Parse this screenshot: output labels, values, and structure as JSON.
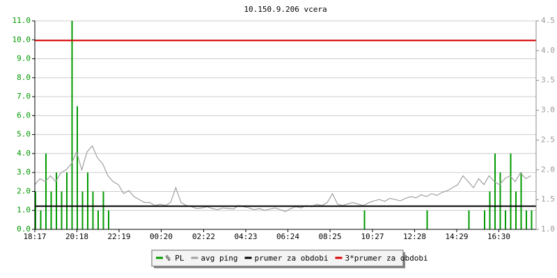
{
  "chart_data": {
    "type": "line",
    "title": "10.150.9.206 vcera",
    "x": [
      "18:17",
      "18:32",
      "18:47",
      "19:02",
      "19:17",
      "19:32",
      "19:47",
      "20:02",
      "20:17",
      "20:32",
      "20:47",
      "21:02",
      "21:17",
      "21:32",
      "21:47",
      "22:02",
      "22:17",
      "22:32",
      "22:47",
      "23:02",
      "23:17",
      "23:32",
      "23:47",
      "00:02",
      "00:17",
      "00:32",
      "00:47",
      "01:02",
      "01:17",
      "01:32",
      "01:47",
      "02:02",
      "02:17",
      "02:32",
      "02:47",
      "03:02",
      "03:17",
      "03:32",
      "03:47",
      "04:02",
      "04:17",
      "04:32",
      "04:47",
      "05:02",
      "05:17",
      "05:32",
      "05:47",
      "06:02",
      "06:17",
      "06:32",
      "06:47",
      "07:02",
      "07:17",
      "07:32",
      "07:47",
      "08:02",
      "08:17",
      "08:32",
      "08:47",
      "09:02",
      "09:17",
      "09:32",
      "09:47",
      "10:02",
      "10:17",
      "10:32",
      "10:47",
      "11:02",
      "11:17",
      "11:32",
      "11:47",
      "12:02",
      "12:17",
      "12:32",
      "12:47",
      "13:02",
      "13:17",
      "13:32",
      "13:47",
      "14:02",
      "14:17",
      "14:32",
      "14:47",
      "15:02",
      "15:17",
      "15:32",
      "15:47",
      "16:02",
      "16:17",
      "16:32",
      "16:47",
      "17:02",
      "17:17",
      "17:32",
      "17:47",
      "18:02"
    ],
    "xticks": [
      "18:17",
      "20:18",
      "22:19",
      "00:20",
      "02:22",
      "04:23",
      "06:24",
      "08:25",
      "10:27",
      "12:28",
      "14:29",
      "16:30"
    ],
    "ylim": [
      0,
      11
    ],
    "yticks": [
      {
        "value": 0,
        "label": "0.0"
      },
      {
        "value": 1,
        "label": "1.0"
      },
      {
        "value": 2,
        "label": "2.0"
      },
      {
        "value": 3,
        "label": "3.0"
      },
      {
        "value": 4,
        "label": "4.0"
      },
      {
        "value": 5,
        "label": "5.0"
      },
      {
        "value": 6,
        "label": "6.0"
      },
      {
        "value": 7,
        "label": "7.0"
      },
      {
        "value": 8,
        "label": "8.0"
      },
      {
        "value": 9,
        "label": "9.0"
      },
      {
        "value": 10,
        "label": "10.0"
      },
      {
        "value": 11,
        "label": "11.0"
      }
    ],
    "y2lim": [
      1,
      4.5
    ],
    "y2ticks": [
      {
        "value": 1,
        "label": "1.0"
      },
      1.5,
      {
        "value": 2,
        "label": "2.0"
      },
      2.5,
      {
        "value": 3,
        "label": "3.0"
      },
      3.5,
      {
        "value": 4,
        "label": "4.0"
      },
      4.5
    ],
    "grid": true,
    "series": [
      {
        "name": "% PL",
        "color": "#009900",
        "style": "bar",
        "values": [
          2,
          1,
          4,
          2,
          3,
          2,
          3,
          11,
          6.5,
          2,
          3,
          2,
          1,
          2,
          1,
          0,
          0,
          0,
          0,
          0,
          0,
          0,
          0,
          0,
          0,
          0,
          0,
          0,
          0,
          0,
          0,
          0,
          0,
          0,
          0,
          0,
          0,
          0,
          0,
          0,
          0,
          0,
          0,
          0,
          0,
          0,
          0,
          0,
          0,
          0,
          0,
          0,
          0,
          0,
          0,
          0,
          0,
          0,
          0,
          0,
          0,
          0,
          0,
          1,
          0,
          0,
          0,
          0,
          0,
          0,
          0,
          0,
          0,
          0,
          0,
          1,
          0,
          0,
          0,
          0,
          0,
          0,
          0,
          1,
          0,
          0,
          1,
          2,
          4,
          3,
          1,
          4,
          2,
          3,
          1,
          1
        ]
      },
      {
        "name": "avg ping",
        "color": "#a0a0a0",
        "axis": "y2",
        "values": [
          1.75,
          1.85,
          1.8,
          1.9,
          1.8,
          1.95,
          2.0,
          2.1,
          2.3,
          2.0,
          2.3,
          2.4,
          2.2,
          2.1,
          1.9,
          1.8,
          1.75,
          1.6,
          1.65,
          1.55,
          1.5,
          1.45,
          1.45,
          1.4,
          1.42,
          1.4,
          1.45,
          1.7,
          1.45,
          1.4,
          1.38,
          1.35,
          1.36,
          1.38,
          1.35,
          1.33,
          1.36,
          1.35,
          1.34,
          1.4,
          1.38,
          1.36,
          1.33,
          1.35,
          1.32,
          1.34,
          1.36,
          1.33,
          1.3,
          1.35,
          1.38,
          1.36,
          1.4,
          1.38,
          1.42,
          1.4,
          1.45,
          1.6,
          1.42,
          1.4,
          1.43,
          1.45,
          1.42,
          1.4,
          1.45,
          1.48,
          1.5,
          1.47,
          1.52,
          1.5,
          1.48,
          1.52,
          1.55,
          1.53,
          1.58,
          1.55,
          1.6,
          1.57,
          1.62,
          1.65,
          1.7,
          1.75,
          1.9,
          1.8,
          1.7,
          1.85,
          1.75,
          1.9,
          1.8,
          1.75,
          1.85,
          1.9,
          1.8,
          1.95,
          1.85,
          1.9
        ]
      },
      {
        "name": "prumer za obdobi",
        "color": "#000000",
        "axis": "y2",
        "value": 1.39
      },
      {
        "name": "3*prumer za obdobi",
        "color": "#dd0000",
        "axis": "y2",
        "value": 4.17
      }
    ]
  }
}
